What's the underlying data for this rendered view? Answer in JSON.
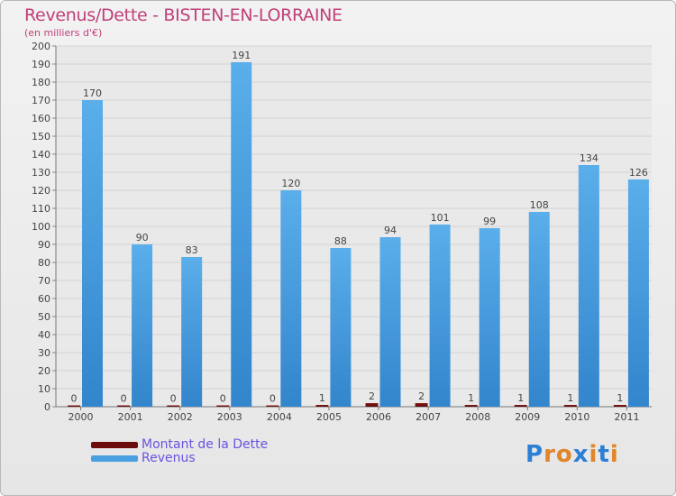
{
  "chart_data": {
    "type": "bar",
    "title": "Revenus/Dette - BISTEN-EN-LORRAINE",
    "subtitle": "(en milliers d'€)",
    "xlabel": "",
    "ylabel": "",
    "ylim": [
      0,
      200
    ],
    "yticks": [
      0,
      10,
      20,
      30,
      40,
      50,
      60,
      70,
      80,
      90,
      100,
      110,
      120,
      130,
      140,
      150,
      160,
      170,
      180,
      190,
      200
    ],
    "grid": true,
    "legend_position": "bottom-left",
    "categories": [
      "2000",
      "2001",
      "2002",
      "2003",
      "2004",
      "2005",
      "2006",
      "2007",
      "2008",
      "2009",
      "2010",
      "2011"
    ],
    "series": [
      {
        "name": "Montant de la Dette",
        "color": "#6b0d0d",
        "values": [
          0,
          0,
          0,
          0,
          0,
          1,
          2,
          2,
          1,
          1,
          1,
          1
        ]
      },
      {
        "name": "Revenus",
        "color": "#4a9fe0",
        "values": [
          170,
          90,
          83,
          191,
          120,
          88,
          94,
          101,
          99,
          108,
          134,
          126
        ]
      }
    ]
  },
  "logo": {
    "text": "Proxiti",
    "letters": [
      "P",
      "r",
      "o",
      "x",
      "i",
      "t",
      "i"
    ],
    "colors": [
      "#2b7fd4",
      "#e0852a",
      "#e0852a",
      "#2b7fd4",
      "#e0852a",
      "#2b7fd4",
      "#e0852a"
    ]
  }
}
